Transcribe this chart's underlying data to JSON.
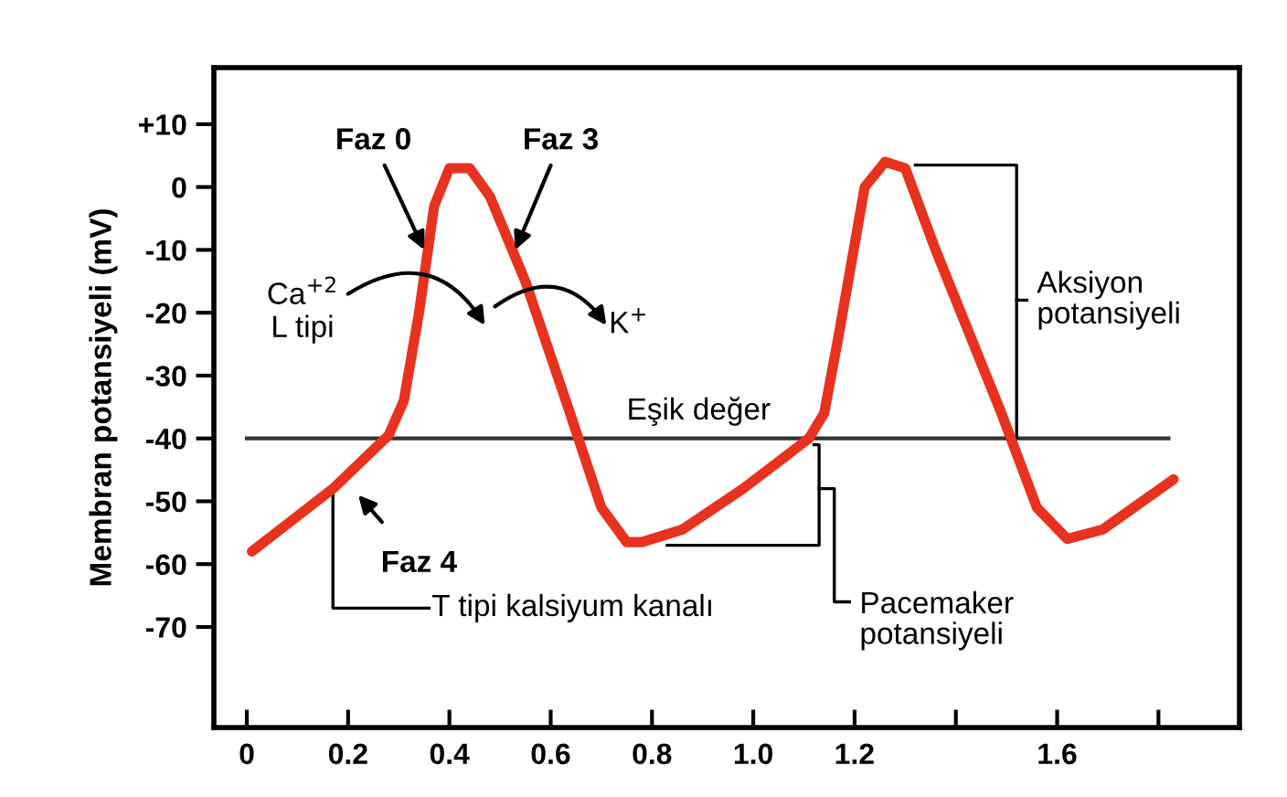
{
  "chart_data": {
    "type": "line",
    "ylabel": "Membran potansiyeli (mV)",
    "series": [
      {
        "color": "#e8321e",
        "x": [
          0.01,
          0.17,
          0.28,
          0.31,
          0.34,
          0.37,
          0.4,
          0.44,
          0.48,
          0.55,
          0.63,
          0.7,
          0.75,
          0.78,
          0.86,
          0.98,
          1.11,
          1.14,
          1.17,
          1.22,
          1.26,
          1.3,
          1.36,
          1.49,
          1.56,
          1.62,
          1.69,
          1.83
        ],
        "values": [
          -58,
          -48,
          -39.5,
          -34,
          -20,
          -3,
          3,
          3,
          -1.5,
          -15,
          -34,
          -51,
          -56.5,
          -56.5,
          -54.5,
          -48,
          -40,
          -36,
          -23,
          0,
          4,
          3,
          -10,
          -36,
          -51,
          -56,
          -54.5,
          -46.5
        ]
      }
    ],
    "xlim": [
      -0.065,
      1.96
    ],
    "ylim": [
      -86,
      19
    ],
    "xticks": [
      0,
      {
        "value": 0.2,
        "label": "0.2"
      },
      {
        "value": 0.4,
        "label": "0.4"
      },
      {
        "value": 0.6,
        "label": "0.6"
      },
      {
        "value": 0.8,
        "label": "0.8"
      },
      {
        "value": 1.0,
        "label": "1.0"
      },
      {
        "value": 1.2,
        "label": "1.2"
      },
      {
        "value": 1.4,
        "label": null
      },
      {
        "value": 1.6,
        "label": "1.6"
      },
      {
        "value": 1.8,
        "label": null
      }
    ],
    "yticks": [
      {
        "value": 10,
        "label": "+10"
      },
      0,
      -10,
      -20,
      -30,
      -40,
      -50,
      -60,
      -70
    ],
    "ref_lines": [
      {
        "axis": "y",
        "value": -40,
        "label": "Eşik değer",
        "color": "#333333"
      }
    ],
    "annotations": [
      {
        "text": "Faz 0",
        "x": 0.35,
        "y": -10
      },
      {
        "text": "Faz 3",
        "x": 0.53,
        "y": -10
      },
      "Faz 4",
      "Ca$^{+2}$\nL tipi",
      "K$^{+}$",
      {
        "text": "T tipi kalsiyum kanalı",
        "x": 0.17,
        "y": -48
      },
      "Aksiyon\npotansiyeli",
      "Pacemaker\npotansiyeli"
    ],
    "grid": false,
    "legend": false,
    "marker": "none",
    "line_style": "solid"
  }
}
